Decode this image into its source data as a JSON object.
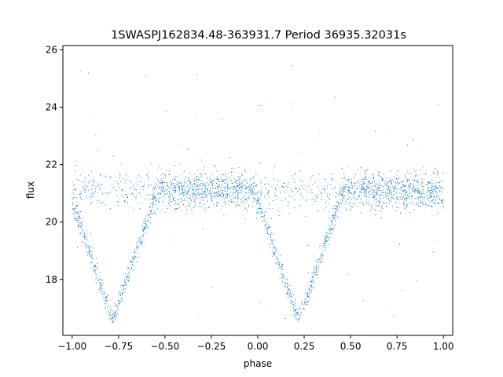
{
  "chart_data": {
    "type": "scatter",
    "title": "1SWASPJ162834.48-363931.7 Period 36935.32031s",
    "xlabel": "phase",
    "ylabel": "flux",
    "xlim": [
      -1.05,
      1.05
    ],
    "ylim": [
      16.05,
      26.15
    ],
    "x_ticks": [
      -1.0,
      -0.75,
      -0.5,
      -0.25,
      0.0,
      0.25,
      0.5,
      0.75,
      1.0
    ],
    "x_tick_labels": [
      "−1.00",
      "−0.75",
      "−0.50",
      "−0.25",
      "0.00",
      "0.25",
      "0.50",
      "0.75",
      "1.00"
    ],
    "y_ticks": [
      18,
      20,
      22,
      24,
      26
    ],
    "y_tick_labels": [
      "18",
      "20",
      "22",
      "24",
      "26"
    ],
    "grid": false,
    "marker_color": "#1f77b4",
    "series": [
      {
        "description_points": "phase-folded light curve: baseline band near flux 21.1 (spread ~20.5–21.9), V-shaped eclipses with minima near phase -0.78 and 0.22 reaching flux ~16.6, sparse outliers from ~16.5 to ~25.7",
        "baseline": 21.1,
        "eclipse_min_phases": [
          -0.78,
          0.22
        ],
        "eclipse_min_flux": 16.6,
        "sample_points": [
          [
            -1.0,
            19.9
          ],
          [
            -0.95,
            19.0
          ],
          [
            -0.9,
            18.4
          ],
          [
            -0.85,
            17.6
          ],
          [
            -0.8,
            16.9
          ],
          [
            -0.78,
            16.6
          ],
          [
            -0.75,
            16.9
          ],
          [
            -0.7,
            17.8
          ],
          [
            -0.65,
            19.0
          ],
          [
            -0.6,
            20.2
          ],
          [
            -0.55,
            21.0
          ],
          [
            -0.25,
            21.2
          ],
          [
            0.0,
            19.9
          ],
          [
            0.05,
            19.0
          ],
          [
            0.1,
            18.3
          ],
          [
            0.15,
            17.5
          ],
          [
            0.2,
            16.9
          ],
          [
            0.22,
            16.6
          ],
          [
            0.25,
            16.9
          ],
          [
            0.3,
            17.8
          ],
          [
            0.35,
            18.9
          ],
          [
            0.4,
            20.0
          ],
          [
            0.45,
            20.9
          ],
          [
            0.75,
            21.2
          ],
          [
            1.0,
            19.9
          ]
        ]
      }
    ]
  }
}
